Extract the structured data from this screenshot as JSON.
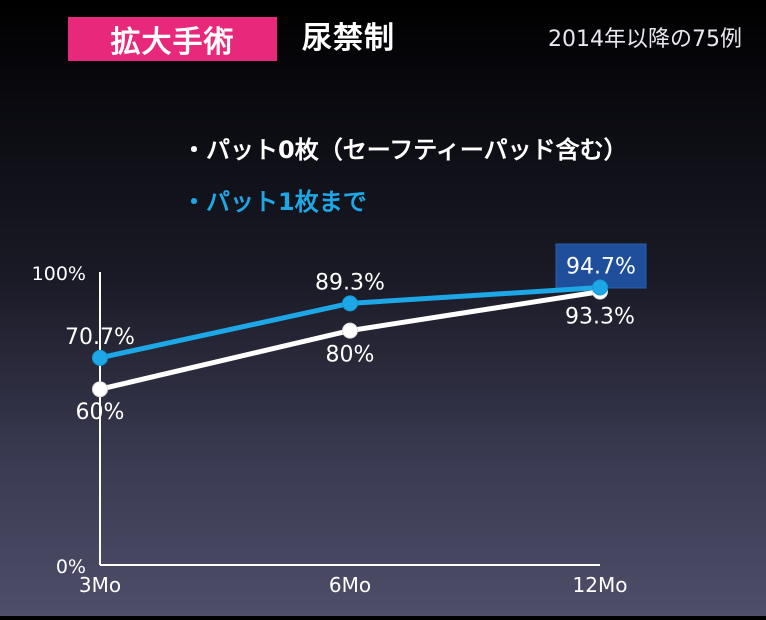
{
  "header": {
    "badge": "拡大手術",
    "title": "尿禁制",
    "note": "2014年以降の75例"
  },
  "colors": {
    "badge": "#e8287a",
    "series_white": "#ffffff",
    "series_blue": "#1da7e6",
    "highlight_box": "#1f4f9a"
  },
  "chart_data": {
    "type": "line",
    "title": "",
    "xlabel": "",
    "ylabel": "",
    "categories": [
      "3Mo",
      "6Mo",
      "12Mo"
    ],
    "ylim": [
      0,
      100
    ],
    "y_ticks": [
      "0%",
      "100%"
    ],
    "grid": false,
    "legend_placement": "top",
    "series": [
      {
        "name": "・パット0枚（セーフティーパッド含む）",
        "color": "#ffffff",
        "values": [
          60,
          80,
          93.3
        ],
        "labels": [
          "60%",
          "80%",
          "93.3%"
        ]
      },
      {
        "name": "・パット1枚まで",
        "color": "#1da7e6",
        "values": [
          70.7,
          89.3,
          94.7
        ],
        "labels": [
          "70.7%",
          "89.3%",
          "94.7%"
        ]
      }
    ]
  }
}
